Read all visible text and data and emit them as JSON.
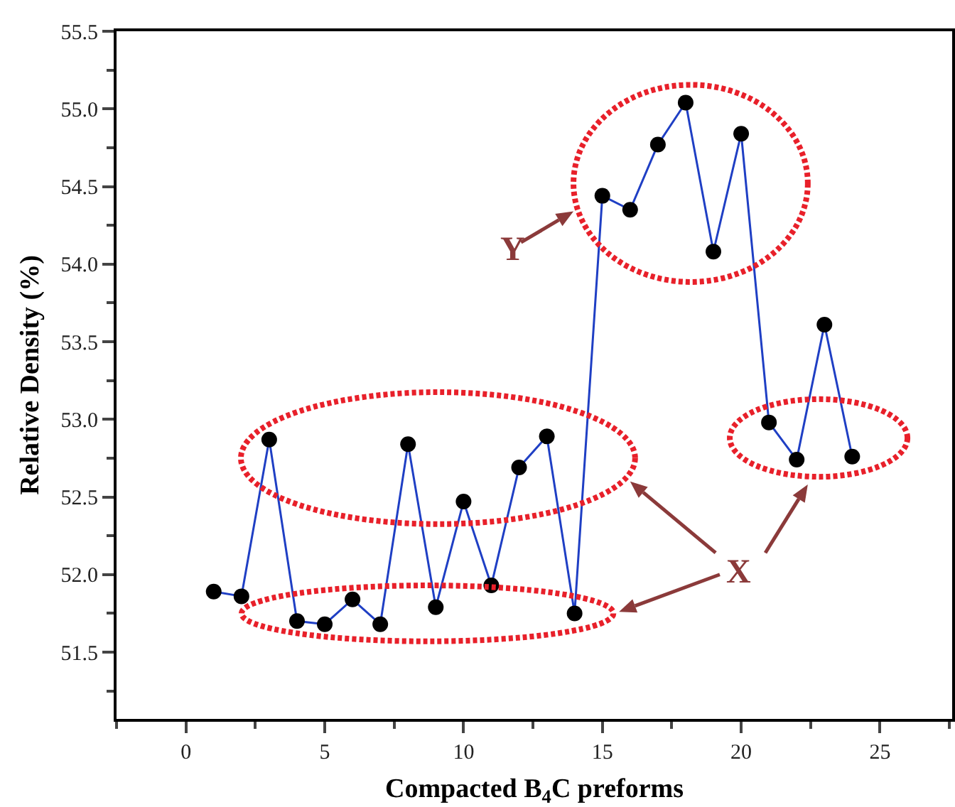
{
  "chart_data": {
    "type": "line",
    "xlabel": "Compacted B$_{4}$C preforms",
    "ylabel": "Relative Density (%)",
    "x": [
      1,
      2,
      3,
      4,
      5,
      6,
      7,
      8,
      9,
      10,
      11,
      12,
      13,
      14,
      15,
      16,
      17,
      18,
      19,
      20,
      21,
      22,
      23,
      24
    ],
    "series": [
      {
        "color": "#1f3fc4",
        "values": [
          51.89,
          51.86,
          52.87,
          51.7,
          51.68,
          51.84,
          51.68,
          52.84,
          51.79,
          52.47,
          51.93,
          52.69,
          52.89,
          51.75,
          54.44,
          54.35,
          54.77,
          55.04,
          54.08,
          54.84,
          52.98,
          52.74,
          53.61,
          52.76
        ]
      }
    ],
    "marker": "circle",
    "line_style": "solid",
    "xlim": [
      -2.5,
      27.6
    ],
    "xticks": [
      0,
      5,
      10,
      15,
      20,
      25
    ],
    "ylim": [
      51.07,
      55.5
    ],
    "yticks": [
      {
        "value": 51.5,
        "label": "51.5"
      },
      {
        "value": 52,
        "label": "52.0"
      },
      {
        "value": 52.5,
        "label": "52.5"
      },
      {
        "value": 53,
        "label": "53.0"
      },
      {
        "value": 53.5,
        "label": "53.5"
      },
      {
        "value": 54,
        "label": "54.0"
      },
      {
        "value": 54.5,
        "label": "54.5"
      },
      {
        "value": 55,
        "label": "55.0"
      },
      {
        "value": 55.5,
        "label": "55.5"
      }
    ],
    "annotations": [
      "X",
      "Y"
    ]
  }
}
